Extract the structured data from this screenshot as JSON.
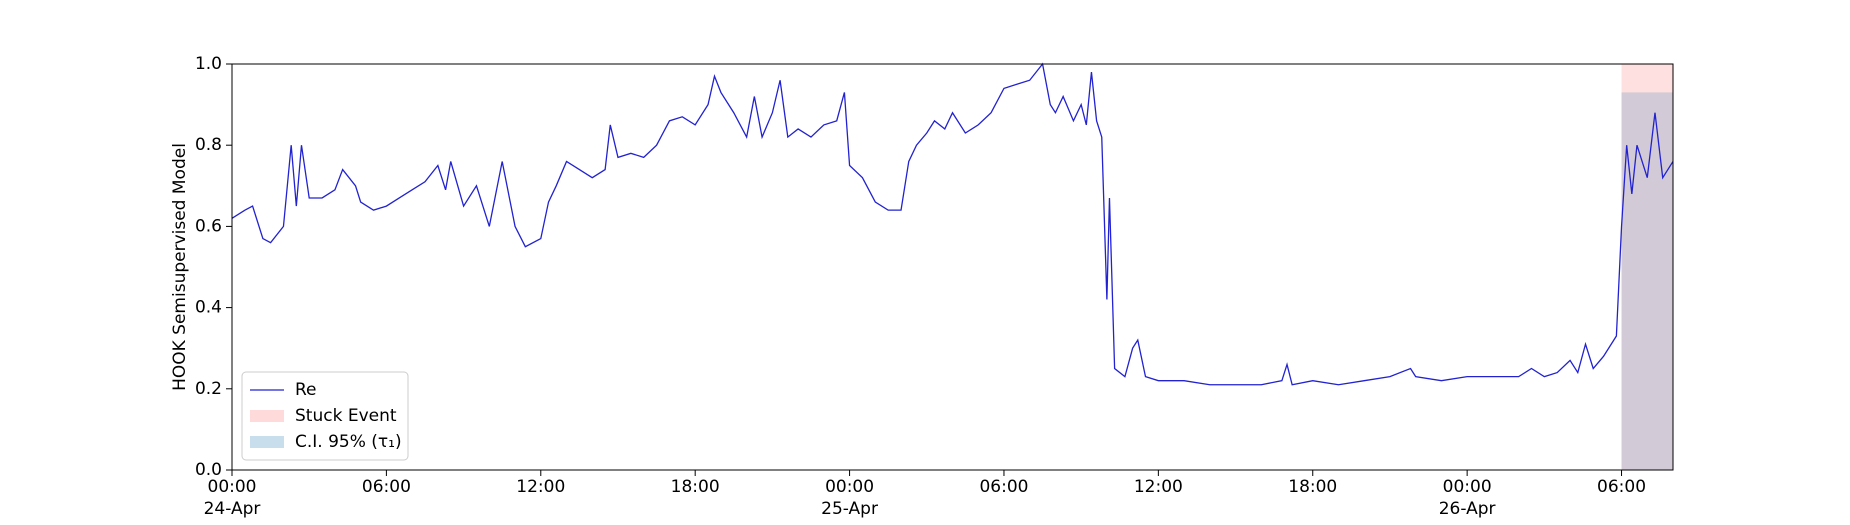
{
  "chart_data": {
    "type": "line",
    "ylabel": "HOOK Semisupervised Model",
    "x": [
      0,
      0.5,
      0.8,
      1.2,
      1.5,
      2,
      2.3,
      2.5,
      2.7,
      3,
      3.5,
      4,
      4.3,
      4.8,
      5,
      5.5,
      6,
      6.5,
      7,
      7.5,
      8,
      8.3,
      8.5,
      9,
      9.5,
      10,
      10.5,
      11,
      11.4,
      12,
      12.3,
      12.6,
      13,
      13.5,
      14,
      14.5,
      14.7,
      15,
      15.5,
      16,
      16.5,
      17,
      17.5,
      18,
      18.5,
      18.75,
      19,
      19.5,
      20,
      20.3,
      20.6,
      21,
      21.3,
      21.6,
      22,
      22.5,
      23,
      23.5,
      23.8,
      24,
      24.5,
      25,
      25.5,
      26,
      26.3,
      26.6,
      27,
      27.3,
      27.7,
      28,
      28.5,
      29,
      29.5,
      30,
      30.5,
      31,
      31.5,
      31.8,
      32,
      32.3,
      32.7,
      33,
      33.2,
      33.4,
      33.6,
      33.8,
      34,
      34.1,
      34.3,
      34.7,
      35,
      35.2,
      35.5,
      36,
      37,
      38,
      39,
      40,
      40.8,
      41,
      41.2,
      42,
      43,
      44,
      45,
      45.8,
      46,
      47,
      48,
      49,
      50,
      50.5,
      51,
      51.5,
      52,
      52.3,
      52.6,
      52.9,
      53.3,
      53.8,
      54,
      54.2,
      54.4,
      54.6,
      55,
      55.3,
      55.6,
      56
    ],
    "series": [
      {
        "name": "Re",
        "color": "#2222d0",
        "values": [
          0.62,
          0.64,
          0.65,
          0.57,
          0.56,
          0.6,
          0.8,
          0.65,
          0.8,
          0.67,
          0.67,
          0.69,
          0.74,
          0.7,
          0.66,
          0.64,
          0.65,
          0.67,
          0.69,
          0.71,
          0.75,
          0.69,
          0.76,
          0.65,
          0.7,
          0.6,
          0.76,
          0.6,
          0.55,
          0.57,
          0.66,
          0.7,
          0.76,
          0.74,
          0.72,
          0.74,
          0.85,
          0.77,
          0.78,
          0.77,
          0.8,
          0.86,
          0.87,
          0.85,
          0.9,
          0.97,
          0.93,
          0.88,
          0.82,
          0.92,
          0.82,
          0.88,
          0.96,
          0.82,
          0.84,
          0.82,
          0.85,
          0.86,
          0.93,
          0.75,
          0.72,
          0.66,
          0.64,
          0.64,
          0.76,
          0.8,
          0.83,
          0.86,
          0.84,
          0.88,
          0.83,
          0.85,
          0.88,
          0.94,
          0.95,
          0.96,
          1.0,
          0.9,
          0.88,
          0.92,
          0.86,
          0.9,
          0.85,
          0.98,
          0.86,
          0.82,
          0.42,
          0.67,
          0.25,
          0.23,
          0.3,
          0.32,
          0.23,
          0.22,
          0.22,
          0.21,
          0.21,
          0.21,
          0.22,
          0.26,
          0.21,
          0.22,
          0.21,
          0.22,
          0.23,
          0.25,
          0.23,
          0.22,
          0.23,
          0.23,
          0.23,
          0.25,
          0.23,
          0.24,
          0.27,
          0.24,
          0.31,
          0.25,
          0.28,
          0.33,
          0.6,
          0.8,
          0.68,
          0.8,
          0.72,
          0.88,
          0.72,
          0.76
        ]
      }
    ],
    "spans": [
      {
        "name": "Stuck Event",
        "color": "#ff0000",
        "opacity": 0.12,
        "x": [
          54,
          56
        ],
        "y": [
          0,
          1
        ]
      },
      {
        "name": "C.I. 95% (τ₁)",
        "color": "#1f77b4",
        "opacity": 0.2,
        "x": [
          54,
          56
        ],
        "y": [
          0,
          0.93
        ]
      }
    ],
    "xlim": [
      0,
      56
    ],
    "xticks": [
      {
        "value": 0,
        "label": "00:00\n24-Apr"
      },
      {
        "value": 6,
        "label": "06:00"
      },
      {
        "value": 12,
        "label": "12:00"
      },
      {
        "value": 18,
        "label": "18:00"
      },
      {
        "value": 24,
        "label": "00:00\n25-Apr"
      },
      {
        "value": 30,
        "label": "06:00"
      },
      {
        "value": 36,
        "label": "12:00"
      },
      {
        "value": 42,
        "label": "18:00"
      },
      {
        "value": 48,
        "label": "00:00\n26-Apr"
      },
      {
        "value": 54,
        "label": "06:00"
      }
    ],
    "ylim": [
      0,
      1
    ],
    "yticks": [
      {
        "value": 0,
        "label": "0.0"
      },
      0.2,
      0.4,
      0.6,
      0.8,
      {
        "value": 1,
        "label": "1.0"
      }
    ],
    "legend": "lower left"
  }
}
